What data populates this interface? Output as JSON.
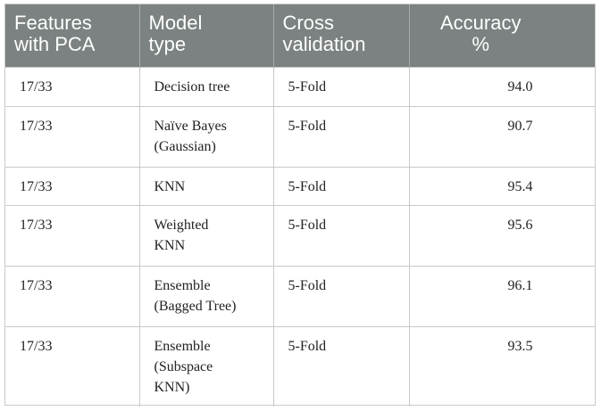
{
  "table": {
    "headers": [
      "Features\nwith PCA",
      "Model\ntype",
      "Cross\nvalidation",
      "Accuracy\n%"
    ],
    "rows": [
      {
        "features": "17/33",
        "model": "Decision tree",
        "cv": "5-Fold",
        "accuracy": "94.0"
      },
      {
        "features": "17/33",
        "model": "Naïve Bayes\n(Gaussian)",
        "cv": "5-Fold",
        "accuracy": "90.7"
      },
      {
        "features": "17/33",
        "model": "KNN",
        "cv": "5-Fold",
        "accuracy": "95.4"
      },
      {
        "features": "17/33",
        "model": "Weighted\nKNN",
        "cv": "5-Fold",
        "accuracy": "95.6"
      },
      {
        "features": "17/33",
        "model": "Ensemble\n(Bagged Tree)",
        "cv": "5-Fold",
        "accuracy": "96.1"
      },
      {
        "features": "17/33",
        "model": "Ensemble\n(Subspace\nKNN)",
        "cv": "5-Fold",
        "accuracy": "93.5"
      }
    ],
    "colors": {
      "header_bg": "#7b8281",
      "header_text": "#ffffff",
      "border": "#c9c9c9"
    }
  }
}
